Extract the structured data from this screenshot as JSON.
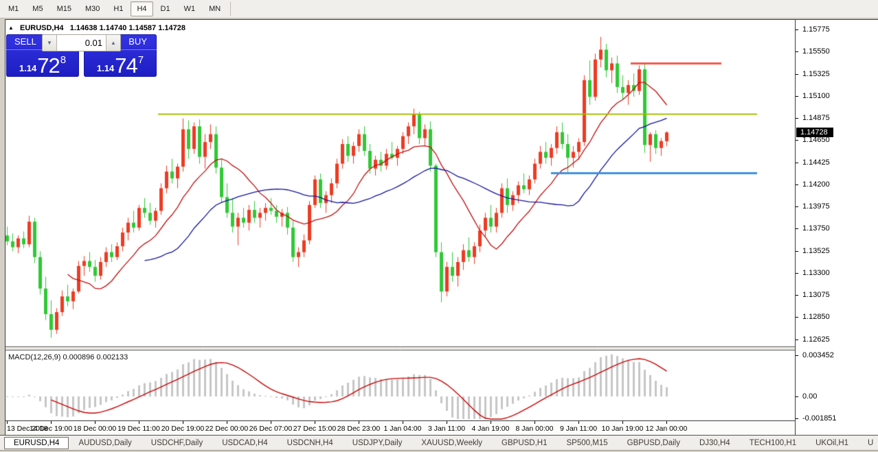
{
  "toolbar": {
    "timeframes": [
      "M1",
      "M5",
      "M15",
      "M30",
      "H1",
      "H4",
      "D1",
      "W1",
      "MN"
    ],
    "active_timeframe": "H4"
  },
  "chart": {
    "title": {
      "symbol": "EURUSD,H4",
      "ohlc": "1.14638 1.14740 1.14587 1.14728"
    },
    "trade_panel": {
      "sell_label": "SELL",
      "buy_label": "BUY",
      "lot_size": "0.01",
      "sell_price": {
        "prefix": "1.14",
        "big": "72",
        "sup": "8"
      },
      "buy_price": {
        "prefix": "1.14",
        "big": "74",
        "sup": "7"
      }
    }
  },
  "chart_data": {
    "type": "candlestick",
    "symbol": "EURUSD",
    "timeframe": "H4",
    "title": "EURUSD,H4",
    "current_bar": {
      "open": 1.14638,
      "high": 1.1474,
      "low": 1.14587,
      "close": 1.14728
    },
    "current_price": "1.14728",
    "y_ticks": [
      "1.15775",
      "1.15550",
      "1.15325",
      "1.15100",
      "1.14875",
      "1.14650",
      "1.14425",
      "1.14200",
      "1.13975",
      "1.13750",
      "1.13525",
      "1.13300",
      "1.13075",
      "1.12850",
      "1.12625"
    ],
    "ylim": [
      1.12555,
      1.15875
    ],
    "x_ticks": [
      "13 Dec 2018",
      "14 Dec 19:00",
      "18 Dec 00:00",
      "19 Dec 11:00",
      "20 Dec 19:00",
      "22 Dec 00:00",
      "26 Dec 07:00",
      "27 Dec 15:00",
      "28 Dec 23:00",
      "1 Jan 04:00",
      "3 Jan 11:00",
      "4 Jan 19:00",
      "8 Jan 00:00",
      "9 Jan 11:00",
      "10 Jan 19:00",
      "12 Jan 00:00"
    ],
    "bars_per_x_tick": 8,
    "grid": false,
    "style": {
      "up_color": "#ee3b23",
      "down_color": "#30c936",
      "ma_fast_color": "#c40e0e",
      "ma_slow_color": "#12129e",
      "background": "#ffffff"
    },
    "candles": [
      [
        1.1368,
        1.1377,
        1.1358,
        1.1362
      ],
      [
        1.1362,
        1.137,
        1.1352,
        1.1356
      ],
      [
        1.1356,
        1.1368,
        1.135,
        1.1365
      ],
      [
        1.1365,
        1.1372,
        1.1355,
        1.1359
      ],
      [
        1.1359,
        1.1388,
        1.1356,
        1.1382
      ],
      [
        1.1382,
        1.1386,
        1.134,
        1.1346
      ],
      [
        1.1346,
        1.1352,
        1.1308,
        1.1314
      ],
      [
        1.1314,
        1.1326,
        1.1282,
        1.1288
      ],
      [
        1.1288,
        1.1302,
        1.1264,
        1.1272
      ],
      [
        1.1272,
        1.1294,
        1.1268,
        1.129
      ],
      [
        1.129,
        1.1312,
        1.1286,
        1.1306
      ],
      [
        1.1306,
        1.1318,
        1.1296,
        1.1301
      ],
      [
        1.1301,
        1.1314,
        1.1293,
        1.1311
      ],
      [
        1.1311,
        1.1342,
        1.1309,
        1.1337
      ],
      [
        1.1337,
        1.1347,
        1.1327,
        1.1342
      ],
      [
        1.1342,
        1.1351,
        1.1331,
        1.1336
      ],
      [
        1.1336,
        1.1343,
        1.1321,
        1.1327
      ],
      [
        1.1327,
        1.1346,
        1.1323,
        1.1341
      ],
      [
        1.1341,
        1.1356,
        1.1336,
        1.1351
      ],
      [
        1.1351,
        1.1359,
        1.1341,
        1.1346
      ],
      [
        1.1346,
        1.1361,
        1.1343,
        1.1357
      ],
      [
        1.1357,
        1.1376,
        1.1352,
        1.1371
      ],
      [
        1.1371,
        1.1386,
        1.1363,
        1.1381
      ],
      [
        1.1381,
        1.1393,
        1.1371,
        1.1376
      ],
      [
        1.1376,
        1.1399,
        1.1373,
        1.1396
      ],
      [
        1.1396,
        1.1406,
        1.1386,
        1.1391
      ],
      [
        1.1391,
        1.1401,
        1.1379,
        1.1383
      ],
      [
        1.1383,
        1.1396,
        1.1376,
        1.1393
      ],
      [
        1.1393,
        1.1421,
        1.1389,
        1.1416
      ],
      [
        1.1416,
        1.1439,
        1.1411,
        1.1433
      ],
      [
        1.1433,
        1.1446,
        1.1421,
        1.1426
      ],
      [
        1.1426,
        1.1441,
        1.1416,
        1.1438
      ],
      [
        1.1438,
        1.1487,
        1.1433,
        1.1476
      ],
      [
        1.1476,
        1.1485,
        1.1446,
        1.1456
      ],
      [
        1.1456,
        1.1483,
        1.1451,
        1.1479
      ],
      [
        1.1479,
        1.1486,
        1.1441,
        1.1448
      ],
      [
        1.1448,
        1.1471,
        1.1436,
        1.1463
      ],
      [
        1.1463,
        1.1481,
        1.1456,
        1.1471
      ],
      [
        1.1471,
        1.1479,
        1.1431,
        1.1437
      ],
      [
        1.1437,
        1.1446,
        1.1401,
        1.1407
      ],
      [
        1.1407,
        1.1421,
        1.1386,
        1.1391
      ],
      [
        1.1391,
        1.1406,
        1.1371,
        1.1377
      ],
      [
        1.1377,
        1.1391,
        1.1358,
        1.1386
      ],
      [
        1.1386,
        1.1396,
        1.1376,
        1.1381
      ],
      [
        1.1381,
        1.1399,
        1.1373,
        1.1394
      ],
      [
        1.1394,
        1.1403,
        1.1381,
        1.1386
      ],
      [
        1.1386,
        1.1396,
        1.1376,
        1.1391
      ],
      [
        1.1391,
        1.1401,
        1.1383,
        1.1396
      ],
      [
        1.1396,
        1.1406,
        1.1389,
        1.1393
      ],
      [
        1.1393,
        1.1399,
        1.1381,
        1.1387
      ],
      [
        1.1387,
        1.1395,
        1.1377,
        1.1391
      ],
      [
        1.1391,
        1.1397,
        1.1369,
        1.1376
      ],
      [
        1.1376,
        1.1383,
        1.1341,
        1.1346
      ],
      [
        1.1346,
        1.1356,
        1.1336,
        1.1351
      ],
      [
        1.1351,
        1.1369,
        1.1346,
        1.1363
      ],
      [
        1.1363,
        1.1403,
        1.1359,
        1.1399
      ],
      [
        1.1399,
        1.1429,
        1.1396,
        1.1425
      ],
      [
        1.1425,
        1.1431,
        1.1396,
        1.1401
      ],
      [
        1.1401,
        1.1413,
        1.1391,
        1.1409
      ],
      [
        1.1409,
        1.1426,
        1.1401,
        1.1421
      ],
      [
        1.1421,
        1.1446,
        1.1416,
        1.1441
      ],
      [
        1.1441,
        1.1466,
        1.1436,
        1.1461
      ],
      [
        1.1461,
        1.1469,
        1.1443,
        1.1449
      ],
      [
        1.1449,
        1.1463,
        1.1441,
        1.1459
      ],
      [
        1.1459,
        1.1476,
        1.1453,
        1.1471
      ],
      [
        1.1471,
        1.1479,
        1.1449,
        1.1454
      ],
      [
        1.1454,
        1.1461,
        1.1431,
        1.1436
      ],
      [
        1.1436,
        1.1449,
        1.1429,
        1.1445
      ],
      [
        1.1445,
        1.1453,
        1.1433,
        1.1439
      ],
      [
        1.1439,
        1.1456,
        1.1435,
        1.1451
      ],
      [
        1.1451,
        1.1463,
        1.1445,
        1.1447
      ],
      [
        1.1447,
        1.1459,
        1.1439,
        1.1456
      ],
      [
        1.1456,
        1.1473,
        1.1451,
        1.1469
      ],
      [
        1.1469,
        1.1483,
        1.1461,
        1.1479
      ],
      [
        1.1479,
        1.1497,
        1.1471,
        1.1491
      ],
      [
        1.1491,
        1.1494,
        1.1461,
        1.1467
      ],
      [
        1.1467,
        1.1481,
        1.1459,
        1.1476
      ],
      [
        1.1476,
        1.1484,
        1.1433,
        1.1439
      ],
      [
        1.1439,
        1.1441,
        1.1346,
        1.1351
      ],
      [
        1.1351,
        1.1361,
        1.13,
        1.1311
      ],
      [
        1.1311,
        1.1341,
        1.1306,
        1.1336
      ],
      [
        1.1336,
        1.1351,
        1.1321,
        1.1327
      ],
      [
        1.1327,
        1.1346,
        1.1316,
        1.1341
      ],
      [
        1.1341,
        1.1359,
        1.1333,
        1.1353
      ],
      [
        1.1353,
        1.1366,
        1.1341,
        1.1346
      ],
      [
        1.1346,
        1.1361,
        1.1339,
        1.1357
      ],
      [
        1.1357,
        1.1379,
        1.1351,
        1.1373
      ],
      [
        1.1373,
        1.1391,
        1.1366,
        1.1386
      ],
      [
        1.1386,
        1.1399,
        1.1371,
        1.1377
      ],
      [
        1.1377,
        1.1396,
        1.1371,
        1.1391
      ],
      [
        1.1391,
        1.1421,
        1.1386,
        1.1416
      ],
      [
        1.1416,
        1.1426,
        1.1391,
        1.1399
      ],
      [
        1.1399,
        1.1413,
        1.1393,
        1.1409
      ],
      [
        1.1409,
        1.1423,
        1.1401,
        1.1419
      ],
      [
        1.1419,
        1.1431,
        1.1411,
        1.1415
      ],
      [
        1.1415,
        1.1429,
        1.1409,
        1.1425
      ],
      [
        1.1425,
        1.1446,
        1.1421,
        1.1441
      ],
      [
        1.1441,
        1.1459,
        1.1436,
        1.1453
      ],
      [
        1.1453,
        1.1463,
        1.1441,
        1.1447
      ],
      [
        1.1447,
        1.1461,
        1.1439,
        1.1457
      ],
      [
        1.1457,
        1.1479,
        1.1451,
        1.1473
      ],
      [
        1.1473,
        1.1483,
        1.1456,
        1.1461
      ],
      [
        1.1461,
        1.1471,
        1.1432,
        1.1447
      ],
      [
        1.1447,
        1.1459,
        1.1437,
        1.1453
      ],
      [
        1.1453,
        1.1467,
        1.1445,
        1.1463
      ],
      [
        1.1463,
        1.1531,
        1.1459,
        1.1526
      ],
      [
        1.1526,
        1.1546,
        1.1501,
        1.1509
      ],
      [
        1.1509,
        1.1553,
        1.1505,
        1.1547
      ],
      [
        1.1547,
        1.157,
        1.1539,
        1.1557
      ],
      [
        1.1557,
        1.1563,
        1.1529,
        1.1536
      ],
      [
        1.1536,
        1.1549,
        1.1523,
        1.1543
      ],
      [
        1.1543,
        1.1551,
        1.1513,
        1.1519
      ],
      [
        1.1519,
        1.1531,
        1.1506,
        1.1513
      ],
      [
        1.1513,
        1.1526,
        1.1501,
        1.1521
      ],
      [
        1.1521,
        1.1533,
        1.1509,
        1.1515
      ],
      [
        1.1515,
        1.1541,
        1.1511,
        1.1537
      ],
      [
        1.1537,
        1.1543,
        1.1452,
        1.146
      ],
      [
        1.146,
        1.1473,
        1.1443,
        1.1471
      ],
      [
        1.1471,
        1.1475,
        1.1451,
        1.1457
      ],
      [
        1.1457,
        1.1467,
        1.1449,
        1.1464
      ],
      [
        1.14638,
        1.1474,
        1.14587,
        1.14728
      ]
    ],
    "overlays": {
      "ma_fast": {
        "type": "sma",
        "period": 12
      },
      "ma_slow": {
        "type": "sma",
        "period": 26
      },
      "hlines": [
        {
          "name": "resistance-line-red",
          "price": 1.1543,
          "from_bar": 113.5,
          "to_bar": 130.0,
          "color": "#f4564c",
          "width": 3
        },
        {
          "name": "level-line-olive",
          "price": 1.1492,
          "from_bar": 27.5,
          "to_bar": 136.5,
          "color": "#a7bc00",
          "width": 2
        },
        {
          "name": "support-line-blue",
          "price": 1.1432,
          "from_bar": 99.0,
          "to_bar": 136.5,
          "color": "#4090e0",
          "width": 3
        }
      ]
    },
    "indicator": {
      "name": "MACD",
      "params": [
        12,
        26,
        9
      ],
      "label": "MACD(12,26,9) 0.000896 0.002133",
      "values": [
        "0.000896",
        "0.002133"
      ],
      "y_tick_labels": [
        "0.003452",
        "0.00",
        "-0.001851"
      ],
      "y_tick_values": [
        0.003452,
        0.0,
        -0.001851
      ],
      "histogram_color": "#c6c6c6",
      "signal_color": "#cc0000"
    }
  },
  "tabs": {
    "items": [
      "EURUSD,H4",
      "AUDUSD,Daily",
      "USDCHF,Daily",
      "USDCAD,H4",
      "USDCNH,H4",
      "USDJPY,Daily",
      "XAUUSD,Weekly",
      "GBPUSD,H1",
      "SP500,M15",
      "GBPUSD,Daily",
      "DJ30,H4",
      "TECH100,H1",
      "UKOil,H1",
      "U"
    ],
    "active": "EURUSD,H4",
    "scroll_left": "◄",
    "scroll_right": "►"
  }
}
